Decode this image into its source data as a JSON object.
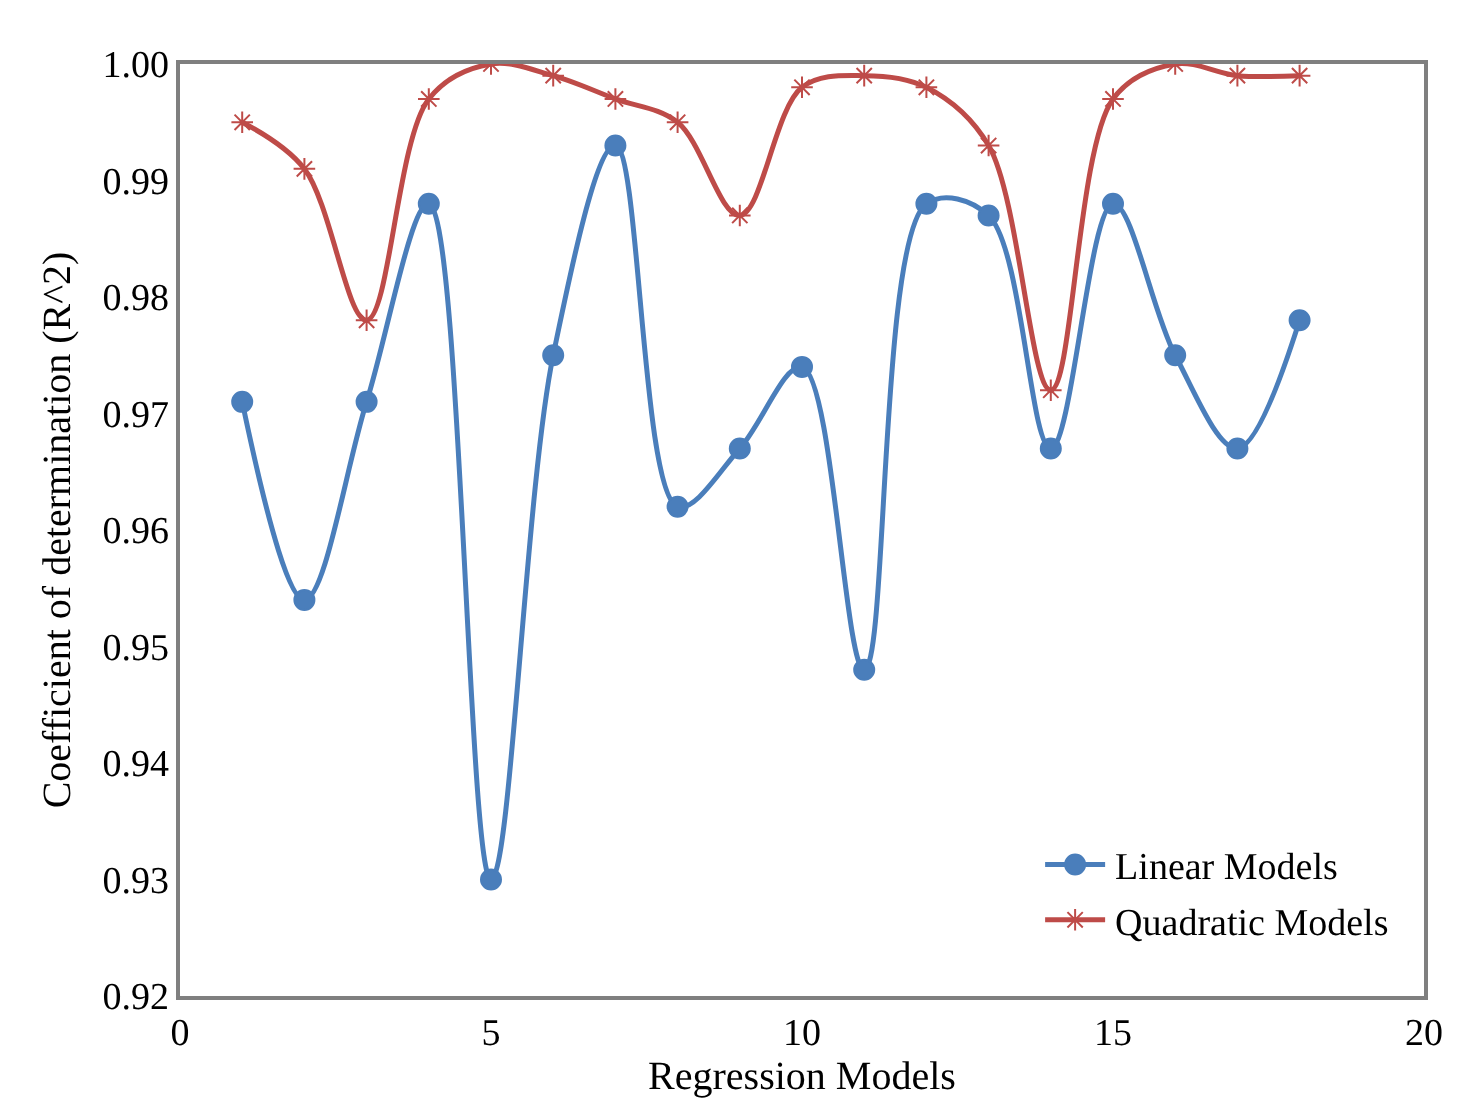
{
  "chart_data": {
    "type": "line",
    "xlabel": "Regression Models",
    "ylabel": "Coefficient of determination (R^2)",
    "x": [
      1,
      2,
      3,
      4,
      5,
      6,
      7,
      8,
      9,
      10,
      11,
      12,
      13,
      14,
      15,
      16,
      17,
      18
    ],
    "series": [
      {
        "name": "Linear Models",
        "color": "#4a7ebb",
        "marker": "circle",
        "values": [
          0.971,
          0.954,
          0.971,
          0.988,
          0.93,
          0.975,
          0.993,
          0.962,
          0.967,
          0.974,
          0.948,
          0.988,
          0.987,
          0.967,
          0.988,
          0.975,
          0.967,
          0.978
        ]
      },
      {
        "name": "Quadratic Models",
        "color": "#be4b48",
        "marker": "cross",
        "values": [
          0.995,
          0.991,
          0.978,
          0.997,
          1.0,
          0.999,
          0.997,
          0.995,
          0.987,
          0.998,
          0.999,
          0.998,
          0.993,
          0.972,
          0.997,
          1.0,
          0.999,
          0.999
        ]
      }
    ],
    "xlim": [
      0,
      20
    ],
    "xticks": [
      0,
      5,
      10,
      15,
      20
    ],
    "ylim": [
      0.92,
      1.0
    ],
    "yticks": [
      {
        "value": 0.92,
        "label": "0.92"
      },
      {
        "value": 0.93,
        "label": "0.93"
      },
      {
        "value": 0.94,
        "label": "0.94"
      },
      {
        "value": 0.95,
        "label": "0.95"
      },
      {
        "value": 0.96,
        "label": "0.96"
      },
      {
        "value": 0.97,
        "label": "0.97"
      },
      {
        "value": 0.98,
        "label": "0.98"
      },
      {
        "value": 0.99,
        "label": "0.99"
      },
      {
        "value": 1.0,
        "label": "1.00"
      }
    ],
    "grid": false,
    "legend": "bottom right",
    "line_style": "solid"
  }
}
